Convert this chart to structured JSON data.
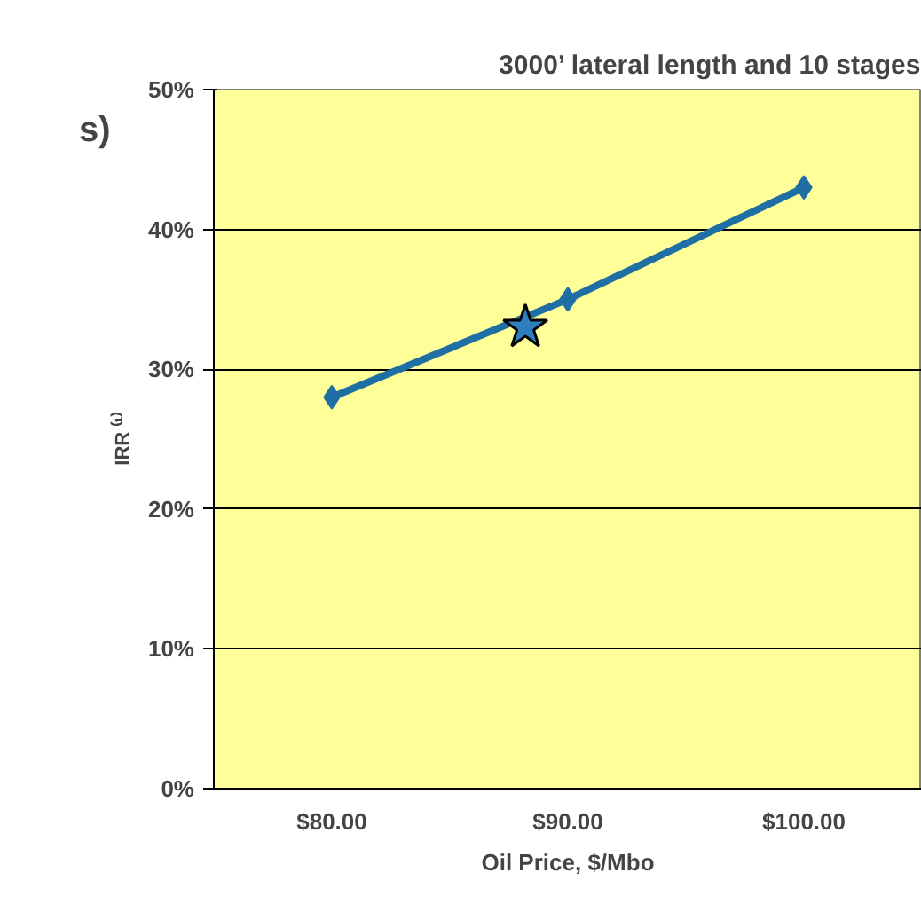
{
  "chart_data": {
    "type": "line",
    "title": "3000’ lateral length and 10 stages",
    "xlabel": "Oil Price, $/Mbo",
    "ylabel": "IRR ⁽¹⁾",
    "annotations": [
      "s)"
    ],
    "xlim": [
      75,
      105
    ],
    "xticks": [
      {
        "value": 80,
        "label": "$80.00"
      },
      {
        "value": 90,
        "label": "$90.00"
      },
      {
        "value": 100,
        "label": "$100.00"
      }
    ],
    "ylim": [
      0,
      50
    ],
    "yticks": [
      {
        "value": 0,
        "label": "0%"
      },
      {
        "value": 10,
        "label": "10%"
      },
      {
        "value": 20,
        "label": "20%"
      },
      {
        "value": 30,
        "label": "30%"
      },
      {
        "value": 40,
        "label": "40%"
      },
      {
        "value": 50,
        "label": "50%"
      }
    ],
    "grid": "y",
    "series": [
      {
        "color": "#1f6fa5",
        "marker": "diamond",
        "x": [
          80,
          90,
          100
        ],
        "values": [
          28,
          35,
          43
        ]
      },
      {
        "type": "scatter",
        "color": "#2e7fc0",
        "marker": "star",
        "x": [
          88.2
        ],
        "values": [
          33
        ]
      }
    ]
  }
}
